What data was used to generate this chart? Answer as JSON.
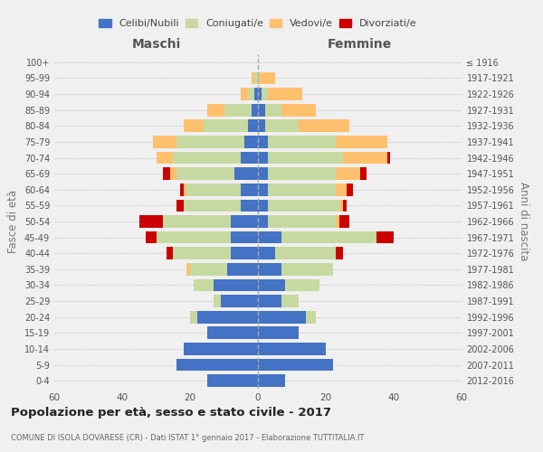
{
  "age_groups": [
    "0-4",
    "5-9",
    "10-14",
    "15-19",
    "20-24",
    "25-29",
    "30-34",
    "35-39",
    "40-44",
    "45-49",
    "50-54",
    "55-59",
    "60-64",
    "65-69",
    "70-74",
    "75-79",
    "80-84",
    "85-89",
    "90-94",
    "95-99",
    "100+"
  ],
  "birth_years": [
    "2012-2016",
    "2007-2011",
    "2002-2006",
    "1997-2001",
    "1992-1996",
    "1987-1991",
    "1982-1986",
    "1977-1981",
    "1972-1976",
    "1967-1971",
    "1962-1966",
    "1957-1961",
    "1952-1956",
    "1947-1951",
    "1942-1946",
    "1937-1941",
    "1932-1936",
    "1927-1931",
    "1922-1926",
    "1917-1921",
    "≤ 1916"
  ],
  "maschi_celibi": [
    15,
    24,
    22,
    15,
    18,
    11,
    13,
    9,
    8,
    8,
    8,
    5,
    5,
    7,
    5,
    4,
    3,
    2,
    1,
    0,
    0
  ],
  "maschi_coniugati": [
    0,
    0,
    0,
    0,
    2,
    2,
    6,
    11,
    17,
    22,
    20,
    17,
    16,
    17,
    20,
    20,
    13,
    8,
    2,
    1,
    0
  ],
  "maschi_vedovi": [
    0,
    0,
    0,
    0,
    0,
    0,
    0,
    1,
    0,
    0,
    0,
    0,
    1,
    2,
    5,
    7,
    6,
    5,
    2,
    1,
    0
  ],
  "maschi_divorziati": [
    0,
    0,
    0,
    0,
    0,
    0,
    0,
    0,
    2,
    3,
    7,
    2,
    1,
    2,
    0,
    0,
    0,
    0,
    0,
    0,
    0
  ],
  "femmine_celibi": [
    8,
    22,
    20,
    12,
    14,
    7,
    8,
    7,
    5,
    7,
    3,
    3,
    3,
    3,
    3,
    3,
    2,
    2,
    1,
    0,
    0
  ],
  "femmine_coniugati": [
    0,
    0,
    0,
    0,
    3,
    5,
    10,
    15,
    18,
    28,
    20,
    21,
    20,
    20,
    22,
    20,
    10,
    5,
    2,
    0,
    0
  ],
  "femmine_vedovi": [
    0,
    0,
    0,
    0,
    0,
    0,
    0,
    0,
    0,
    0,
    1,
    1,
    3,
    7,
    13,
    15,
    15,
    10,
    10,
    5,
    0
  ],
  "femmine_divorziati": [
    0,
    0,
    0,
    0,
    0,
    0,
    0,
    0,
    2,
    5,
    3,
    1,
    2,
    2,
    1,
    0,
    0,
    0,
    0,
    0,
    0
  ],
  "colors": {
    "celibi": "#4472c4",
    "coniugati": "#c6d9a0",
    "vedovi": "#ffc06e",
    "divorziati": "#cc0000"
  },
  "title": "Popolazione per età, sesso e stato civile - 2017",
  "subtitle": "COMUNE DI ISOLA DOVARESE (CR) - Dati ISTAT 1° gennaio 2017 - Elaborazione TUTTITALIA.IT",
  "xlabel_left": "Maschi",
  "xlabel_right": "Femmine",
  "ylabel_left": "Fasce di età",
  "ylabel_right": "Anni di nascita",
  "xlim": 60,
  "background_color": "#f0f0f0",
  "legend_labels": [
    "Celibi/Nubili",
    "Coniugati/e",
    "Vedovi/e",
    "Divorziati/e"
  ]
}
